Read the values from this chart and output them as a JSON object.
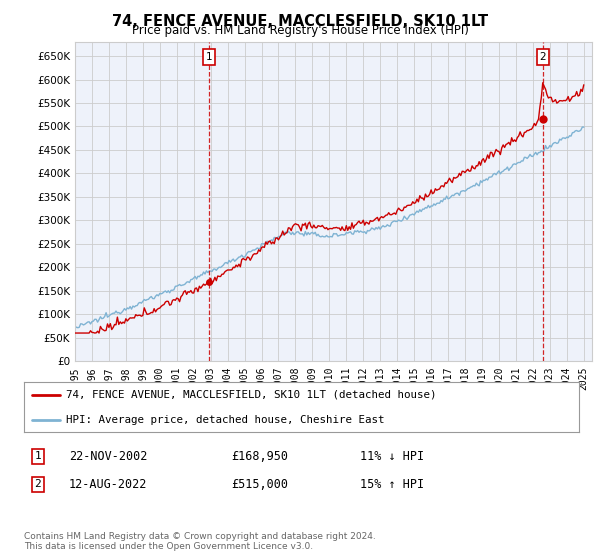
{
  "title": "74, FENCE AVENUE, MACCLESFIELD, SK10 1LT",
  "subtitle": "Price paid vs. HM Land Registry's House Price Index (HPI)",
  "ylabel_ticks": [
    "£0",
    "£50K",
    "£100K",
    "£150K",
    "£200K",
    "£250K",
    "£300K",
    "£350K",
    "£400K",
    "£450K",
    "£500K",
    "£550K",
    "£600K",
    "£650K"
  ],
  "ytick_values": [
    0,
    50000,
    100000,
    150000,
    200000,
    250000,
    300000,
    350000,
    400000,
    450000,
    500000,
    550000,
    600000,
    650000
  ],
  "ylim": [
    0,
    680000
  ],
  "xlim_start": 1995.0,
  "xlim_end": 2025.5,
  "sale1_x": 2002.9,
  "sale1_y": 168950,
  "sale2_x": 2022.6,
  "sale2_y": 515000,
  "legend_entry1": "74, FENCE AVENUE, MACCLESFIELD, SK10 1LT (detached house)",
  "legend_entry2": "HPI: Average price, detached house, Cheshire East",
  "table_row1_num": "1",
  "table_row1_date": "22-NOV-2002",
  "table_row1_price": "£168,950",
  "table_row1_hpi": "11% ↓ HPI",
  "table_row2_num": "2",
  "table_row2_date": "12-AUG-2022",
  "table_row2_price": "£515,000",
  "table_row2_hpi": "15% ↑ HPI",
  "footnote": "Contains HM Land Registry data © Crown copyright and database right 2024.\nThis data is licensed under the Open Government Licence v3.0.",
  "line_house_color": "#cc0000",
  "line_hpi_color": "#7fb3d3",
  "vline_color": "#cc0000",
  "grid_color": "#cccccc",
  "bg_color": "#ffffff",
  "plot_bg_color": "#eef2fa",
  "xtick_years": [
    1995,
    1996,
    1997,
    1998,
    1999,
    2000,
    2001,
    2002,
    2003,
    2004,
    2005,
    2006,
    2007,
    2008,
    2009,
    2010,
    2011,
    2012,
    2013,
    2014,
    2015,
    2016,
    2017,
    2018,
    2019,
    2020,
    2021,
    2022,
    2023,
    2024,
    2025
  ]
}
